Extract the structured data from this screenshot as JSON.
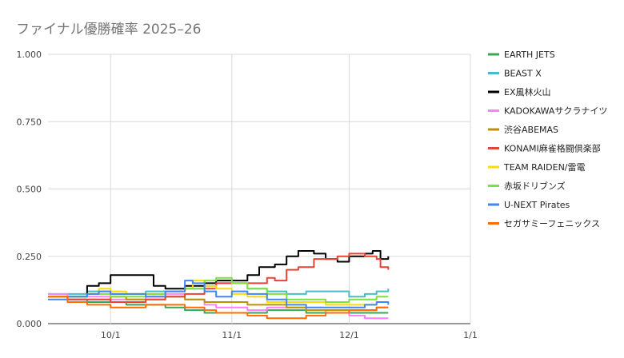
{
  "chart_data": {
    "type": "line",
    "title": "ファイナル優勝確率 2025–26",
    "xlabel": "",
    "ylabel": "",
    "x_start": "2025-09-15",
    "x_end": "2026-01-01",
    "x_tick_dates": [
      "2025-10-01",
      "2025-11-01",
      "2025-12-01",
      "2026-01-01"
    ],
    "x_tick_labels": [
      "10/1",
      "11/1",
      "12/1",
      "1/1"
    ],
    "ylim": [
      0,
      1
    ],
    "y_ticks": [
      0,
      0.25,
      0.5,
      0.75,
      1.0
    ],
    "y_tick_labels": [
      "0.000",
      "0.250",
      "0.500",
      "0.750",
      "1.000"
    ],
    "grid": true,
    "legend_position": "right",
    "series": [
      {
        "name": "EARTH JETS",
        "color": "#34a853",
        "points": [
          [
            "2025-09-15",
            0.1
          ],
          [
            "2025-09-20",
            0.09
          ],
          [
            "2025-09-25",
            0.08
          ],
          [
            "2025-10-01",
            0.08
          ],
          [
            "2025-10-05",
            0.07
          ],
          [
            "2025-10-10",
            0.07
          ],
          [
            "2025-10-15",
            0.06
          ],
          [
            "2025-10-20",
            0.05
          ],
          [
            "2025-10-25",
            0.04
          ],
          [
            "2025-10-28",
            0.04
          ],
          [
            "2025-11-01",
            0.04
          ],
          [
            "2025-11-05",
            0.04
          ],
          [
            "2025-11-10",
            0.05
          ],
          [
            "2025-11-15",
            0.05
          ],
          [
            "2025-11-20",
            0.04
          ],
          [
            "2025-11-25",
            0.05
          ],
          [
            "2025-12-01",
            0.04
          ],
          [
            "2025-12-05",
            0.04
          ],
          [
            "2025-12-08",
            0.04
          ],
          [
            "2025-12-11",
            0.04
          ]
        ]
      },
      {
        "name": "BEAST X",
        "color": "#46bdc6",
        "points": [
          [
            "2025-09-15",
            0.11
          ],
          [
            "2025-09-20",
            0.11
          ],
          [
            "2025-09-25",
            0.12
          ],
          [
            "2025-10-01",
            0.11
          ],
          [
            "2025-10-05",
            0.11
          ],
          [
            "2025-10-10",
            0.12
          ],
          [
            "2025-10-15",
            0.12
          ],
          [
            "2025-10-20",
            0.13
          ],
          [
            "2025-10-25",
            0.14
          ],
          [
            "2025-10-28",
            0.15
          ],
          [
            "2025-11-01",
            0.15
          ],
          [
            "2025-11-05",
            0.13
          ],
          [
            "2025-11-10",
            0.12
          ],
          [
            "2025-11-15",
            0.11
          ],
          [
            "2025-11-20",
            0.12
          ],
          [
            "2025-11-25",
            0.12
          ],
          [
            "2025-12-01",
            0.1
          ],
          [
            "2025-12-05",
            0.11
          ],
          [
            "2025-12-08",
            0.12
          ],
          [
            "2025-12-11",
            0.13
          ]
        ]
      },
      {
        "name": "EX風林火山",
        "color": "#000000",
        "points": [
          [
            "2025-09-15",
            0.1
          ],
          [
            "2025-09-20",
            0.1
          ],
          [
            "2025-09-25",
            0.14
          ],
          [
            "2025-09-28",
            0.15
          ],
          [
            "2025-10-01",
            0.18
          ],
          [
            "2025-10-05",
            0.18
          ],
          [
            "2025-10-10",
            0.18
          ],
          [
            "2025-10-12",
            0.14
          ],
          [
            "2025-10-15",
            0.13
          ],
          [
            "2025-10-20",
            0.14
          ],
          [
            "2025-10-25",
            0.15
          ],
          [
            "2025-10-28",
            0.16
          ],
          [
            "2025-11-01",
            0.16
          ],
          [
            "2025-11-05",
            0.18
          ],
          [
            "2025-11-08",
            0.21
          ],
          [
            "2025-11-12",
            0.22
          ],
          [
            "2025-11-15",
            0.25
          ],
          [
            "2025-11-18",
            0.27
          ],
          [
            "2025-11-22",
            0.26
          ],
          [
            "2025-11-25",
            0.24
          ],
          [
            "2025-11-28",
            0.23
          ],
          [
            "2025-12-01",
            0.25
          ],
          [
            "2025-12-05",
            0.26
          ],
          [
            "2025-12-07",
            0.27
          ],
          [
            "2025-12-09",
            0.24
          ],
          [
            "2025-12-11",
            0.25
          ]
        ]
      },
      {
        "name": "KADOKAWAサクラナイツ",
        "color": "#ff80ff",
        "points": [
          [
            "2025-09-15",
            0.11
          ],
          [
            "2025-09-20",
            0.1
          ],
          [
            "2025-09-25",
            0.1
          ],
          [
            "2025-10-01",
            0.09
          ],
          [
            "2025-10-05",
            0.09
          ],
          [
            "2025-10-10",
            0.1
          ],
          [
            "2025-10-15",
            0.11
          ],
          [
            "2025-10-20",
            0.09
          ],
          [
            "2025-10-25",
            0.07
          ],
          [
            "2025-10-28",
            0.06
          ],
          [
            "2025-11-01",
            0.06
          ],
          [
            "2025-11-05",
            0.05
          ],
          [
            "2025-11-10",
            0.06
          ],
          [
            "2025-11-15",
            0.06
          ],
          [
            "2025-11-20",
            0.05
          ],
          [
            "2025-11-25",
            0.04
          ],
          [
            "2025-12-01",
            0.03
          ],
          [
            "2025-12-05",
            0.02
          ],
          [
            "2025-12-08",
            0.02
          ],
          [
            "2025-12-11",
            0.02
          ]
        ]
      },
      {
        "name": "渋谷ABEMAS",
        "color": "#bf9000",
        "points": [
          [
            "2025-09-15",
            0.1
          ],
          [
            "2025-09-20",
            0.09
          ],
          [
            "2025-09-25",
            0.09
          ],
          [
            "2025-10-01",
            0.1
          ],
          [
            "2025-10-05",
            0.09
          ],
          [
            "2025-10-10",
            0.09
          ],
          [
            "2025-10-15",
            0.1
          ],
          [
            "2025-10-20",
            0.09
          ],
          [
            "2025-10-25",
            0.08
          ],
          [
            "2025-10-28",
            0.08
          ],
          [
            "2025-11-01",
            0.08
          ],
          [
            "2025-11-05",
            0.07
          ],
          [
            "2025-11-10",
            0.07
          ],
          [
            "2025-11-15",
            0.06
          ],
          [
            "2025-11-20",
            0.05
          ],
          [
            "2025-11-25",
            0.05
          ],
          [
            "2025-12-01",
            0.05
          ],
          [
            "2025-12-05",
            0.05
          ],
          [
            "2025-12-08",
            0.06
          ],
          [
            "2025-12-11",
            0.06
          ]
        ]
      },
      {
        "name": "KONAMI麻雀格闘倶楽部",
        "color": "#e84335",
        "points": [
          [
            "2025-09-15",
            0.1
          ],
          [
            "2025-09-20",
            0.09
          ],
          [
            "2025-09-25",
            0.09
          ],
          [
            "2025-10-01",
            0.08
          ],
          [
            "2025-10-05",
            0.08
          ],
          [
            "2025-10-10",
            0.09
          ],
          [
            "2025-10-15",
            0.1
          ],
          [
            "2025-10-20",
            0.11
          ],
          [
            "2025-10-25",
            0.13
          ],
          [
            "2025-10-28",
            0.15
          ],
          [
            "2025-11-01",
            0.15
          ],
          [
            "2025-11-05",
            0.15
          ],
          [
            "2025-11-10",
            0.17
          ],
          [
            "2025-11-12",
            0.16
          ],
          [
            "2025-11-15",
            0.2
          ],
          [
            "2025-11-18",
            0.21
          ],
          [
            "2025-11-22",
            0.24
          ],
          [
            "2025-11-25",
            0.24
          ],
          [
            "2025-11-28",
            0.25
          ],
          [
            "2025-12-01",
            0.26
          ],
          [
            "2025-12-05",
            0.25
          ],
          [
            "2025-12-08",
            0.24
          ],
          [
            "2025-12-09",
            0.21
          ],
          [
            "2025-12-11",
            0.2
          ]
        ]
      },
      {
        "name": "TEAM RAIDEN/雷電",
        "color": "#fbdb05",
        "points": [
          [
            "2025-09-15",
            0.1
          ],
          [
            "2025-09-20",
            0.1
          ],
          [
            "2025-09-25",
            0.11
          ],
          [
            "2025-09-28",
            0.13
          ],
          [
            "2025-10-01",
            0.12
          ],
          [
            "2025-10-05",
            0.11
          ],
          [
            "2025-10-10",
            0.11
          ],
          [
            "2025-10-15",
            0.12
          ],
          [
            "2025-10-20",
            0.13
          ],
          [
            "2025-10-22",
            0.16
          ],
          [
            "2025-10-25",
            0.14
          ],
          [
            "2025-10-28",
            0.13
          ],
          [
            "2025-11-01",
            0.11
          ],
          [
            "2025-11-05",
            0.1
          ],
          [
            "2025-11-10",
            0.08
          ],
          [
            "2025-11-15",
            0.08
          ],
          [
            "2025-11-20",
            0.08
          ],
          [
            "2025-11-25",
            0.07
          ],
          [
            "2025-12-01",
            0.07
          ],
          [
            "2025-12-05",
            0.07
          ],
          [
            "2025-12-08",
            0.08
          ],
          [
            "2025-12-11",
            0.08
          ]
        ]
      },
      {
        "name": "赤坂ドリブンズ",
        "color": "#7ee03a",
        "points": [
          [
            "2025-09-15",
            0.1
          ],
          [
            "2025-09-20",
            0.1
          ],
          [
            "2025-09-25",
            0.11
          ],
          [
            "2025-10-01",
            0.1
          ],
          [
            "2025-10-05",
            0.1
          ],
          [
            "2025-10-10",
            0.11
          ],
          [
            "2025-10-15",
            0.12
          ],
          [
            "2025-10-20",
            0.13
          ],
          [
            "2025-10-25",
            0.16
          ],
          [
            "2025-10-28",
            0.17
          ],
          [
            "2025-11-01",
            0.15
          ],
          [
            "2025-11-05",
            0.13
          ],
          [
            "2025-11-10",
            0.11
          ],
          [
            "2025-11-15",
            0.09
          ],
          [
            "2025-11-20",
            0.09
          ],
          [
            "2025-11-25",
            0.08
          ],
          [
            "2025-12-01",
            0.09
          ],
          [
            "2025-12-05",
            0.09
          ],
          [
            "2025-12-08",
            0.1
          ],
          [
            "2025-12-11",
            0.1
          ]
        ]
      },
      {
        "name": "U-NEXT Pirates",
        "color": "#4285f4",
        "points": [
          [
            "2025-09-15",
            0.09
          ],
          [
            "2025-09-20",
            0.1
          ],
          [
            "2025-09-25",
            0.11
          ],
          [
            "2025-09-28",
            0.12
          ],
          [
            "2025-10-01",
            0.11
          ],
          [
            "2025-10-05",
            0.11
          ],
          [
            "2025-10-10",
            0.1
          ],
          [
            "2025-10-15",
            0.12
          ],
          [
            "2025-10-20",
            0.16
          ],
          [
            "2025-10-22",
            0.15
          ],
          [
            "2025-10-25",
            0.12
          ],
          [
            "2025-10-28",
            0.1
          ],
          [
            "2025-11-01",
            0.12
          ],
          [
            "2025-11-05",
            0.11
          ],
          [
            "2025-11-10",
            0.09
          ],
          [
            "2025-11-15",
            0.07
          ],
          [
            "2025-11-20",
            0.06
          ],
          [
            "2025-11-25",
            0.06
          ],
          [
            "2025-12-01",
            0.06
          ],
          [
            "2025-12-05",
            0.07
          ],
          [
            "2025-12-08",
            0.08
          ],
          [
            "2025-12-11",
            0.07
          ]
        ]
      },
      {
        "name": "セガサミーフェニックス",
        "color": "#ff6d01",
        "points": [
          [
            "2025-09-15",
            0.1
          ],
          [
            "2025-09-20",
            0.08
          ],
          [
            "2025-09-25",
            0.07
          ],
          [
            "2025-10-01",
            0.06
          ],
          [
            "2025-10-05",
            0.06
          ],
          [
            "2025-10-10",
            0.07
          ],
          [
            "2025-10-15",
            0.07
          ],
          [
            "2025-10-20",
            0.06
          ],
          [
            "2025-10-25",
            0.05
          ],
          [
            "2025-10-28",
            0.04
          ],
          [
            "2025-11-01",
            0.04
          ],
          [
            "2025-11-05",
            0.03
          ],
          [
            "2025-11-10",
            0.02
          ],
          [
            "2025-11-15",
            0.02
          ],
          [
            "2025-11-20",
            0.03
          ],
          [
            "2025-11-25",
            0.04
          ],
          [
            "2025-12-01",
            0.05
          ],
          [
            "2025-12-05",
            0.05
          ],
          [
            "2025-12-08",
            0.06
          ],
          [
            "2025-12-11",
            0.06
          ]
        ]
      }
    ]
  }
}
